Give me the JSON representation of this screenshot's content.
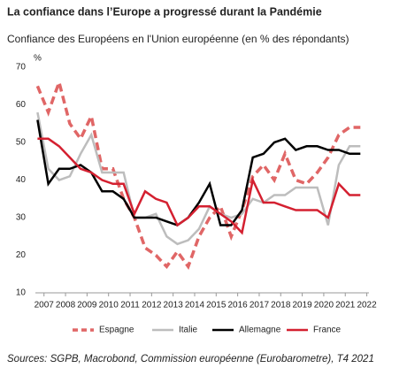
{
  "chart_data": {
    "type": "line",
    "title": "La confiance dans l’Europe a progressé durant la Pandémie",
    "subtitle": "Confiance des Européens en l'Union européenne (en % des répondants)",
    "y_unit": "%",
    "source": "Sources: SGPB, Macrobond, Commission européenne (Eurobarometre), T4 2021",
    "x": [
      2006.7,
      2007.2,
      2007.7,
      2008.2,
      2008.7,
      2009.2,
      2009.7,
      2010.2,
      2010.7,
      2011.2,
      2011.7,
      2012.2,
      2012.7,
      2013.2,
      2013.7,
      2014.2,
      2014.7,
      2015.2,
      2015.7,
      2016.2,
      2016.7,
      2017.2,
      2017.7,
      2018.2,
      2018.7,
      2019.2,
      2019.7,
      2020.2,
      2020.7,
      2021.2,
      2021.7
    ],
    "series": [
      {
        "name": "Espagne",
        "color": "#e06666",
        "dashed": true,
        "values": [
          65,
          58,
          66,
          55,
          51,
          57,
          43,
          43,
          35,
          30,
          22,
          20,
          17,
          21,
          17,
          25,
          30,
          33,
          25,
          32,
          41,
          44,
          40,
          47,
          40,
          39,
          42,
          46,
          52,
          54,
          54
        ]
      },
      {
        "name": "Italie",
        "color": "#bdbdbd",
        "dashed": false,
        "values": [
          58,
          43,
          40,
          41,
          47,
          52,
          42,
          42,
          42,
          30,
          30,
          31,
          25,
          23,
          24,
          27,
          33,
          31,
          30,
          31,
          35,
          34,
          36,
          36,
          38,
          38,
          38,
          28,
          44,
          49,
          49
        ]
      },
      {
        "name": "Allemagne",
        "color": "#000000",
        "dashed": false,
        "values": [
          56,
          39,
          43,
          43,
          44,
          42,
          37,
          37,
          35,
          30,
          30,
          30,
          29,
          28,
          30,
          34,
          39,
          28,
          28,
          32,
          46,
          47,
          50,
          51,
          48,
          49,
          49,
          48,
          48,
          47,
          47
        ]
      },
      {
        "name": "France",
        "color": "#d42030",
        "dashed": false,
        "values": [
          51,
          51,
          49,
          46,
          43,
          42,
          40,
          39,
          39,
          31,
          37,
          35,
          34,
          28,
          30,
          33,
          33,
          31,
          29,
          26,
          40,
          34,
          34,
          33,
          32,
          32,
          32,
          30,
          39,
          36,
          36
        ]
      }
    ],
    "xlim": [
      2006.6,
      2022.1
    ],
    "xticks": [
      2007,
      2008,
      2009,
      2010,
      2011,
      2012,
      2013,
      2014,
      2015,
      2016,
      2017,
      2018,
      2019,
      2020,
      2021,
      2022
    ],
    "ylim": [
      10,
      70
    ],
    "yticks": [
      10,
      20,
      30,
      40,
      50,
      60,
      70
    ],
    "grid": false
  }
}
